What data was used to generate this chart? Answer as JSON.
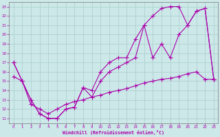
{
  "xlabel": "Windchill (Refroidissement éolien,°C)",
  "bg_color": "#cce8e8",
  "line_color": "#aa00aa",
  "grid_color": "#aacccc",
  "xlim": [
    -0.5,
    23.5
  ],
  "ylim": [
    10.5,
    23.5
  ],
  "xticks": [
    0,
    1,
    2,
    3,
    4,
    5,
    6,
    7,
    8,
    9,
    10,
    11,
    12,
    13,
    14,
    15,
    16,
    17,
    18,
    19,
    20,
    21,
    22,
    23
  ],
  "yticks": [
    11,
    12,
    13,
    14,
    15,
    16,
    17,
    18,
    19,
    20,
    21,
    22,
    23
  ],
  "line1_x": [
    0,
    1,
    2,
    3,
    4,
    5,
    6,
    7,
    8,
    9,
    10,
    11,
    12,
    13,
    14,
    15,
    16,
    17,
    18,
    19,
    20,
    21,
    22,
    23
  ],
  "line1_y": [
    17,
    15,
    13,
    11.5,
    11.0,
    11.0,
    12.0,
    12.2,
    14.3,
    13.3,
    15.0,
    16.0,
    16.5,
    17.0,
    17.5,
    21.0,
    22.0,
    22.8,
    23.0,
    23.0,
    21.0,
    22.5,
    22.8,
    15.2
  ],
  "line2_x": [
    0,
    1,
    2,
    3,
    4,
    5,
    6,
    7,
    8,
    9,
    10,
    11,
    12,
    13,
    14,
    15,
    16,
    17,
    18,
    19,
    20,
    21,
    22,
    23
  ],
  "line2_y": [
    17,
    15,
    13,
    11.5,
    11.0,
    11.0,
    12.0,
    12.2,
    14.3,
    14.0,
    16.0,
    17.0,
    17.5,
    17.5,
    19.5,
    21.0,
    17.5,
    19.0,
    17.5,
    20.0,
    21.0,
    22.5,
    22.8,
    15.2
  ],
  "line3_x": [
    0,
    1,
    2,
    3,
    4,
    5,
    6,
    7,
    8,
    9,
    10,
    11,
    12,
    13,
    14,
    15,
    16,
    17,
    18,
    19,
    20,
    21,
    22,
    23
  ],
  "line3_y": [
    15.5,
    15.0,
    12.5,
    12.0,
    11.5,
    12.0,
    12.5,
    12.8,
    13.0,
    13.3,
    13.5,
    13.8,
    14.0,
    14.2,
    14.5,
    14.8,
    15.0,
    15.2,
    15.3,
    15.5,
    15.8,
    16.0,
    15.2,
    15.2
  ]
}
